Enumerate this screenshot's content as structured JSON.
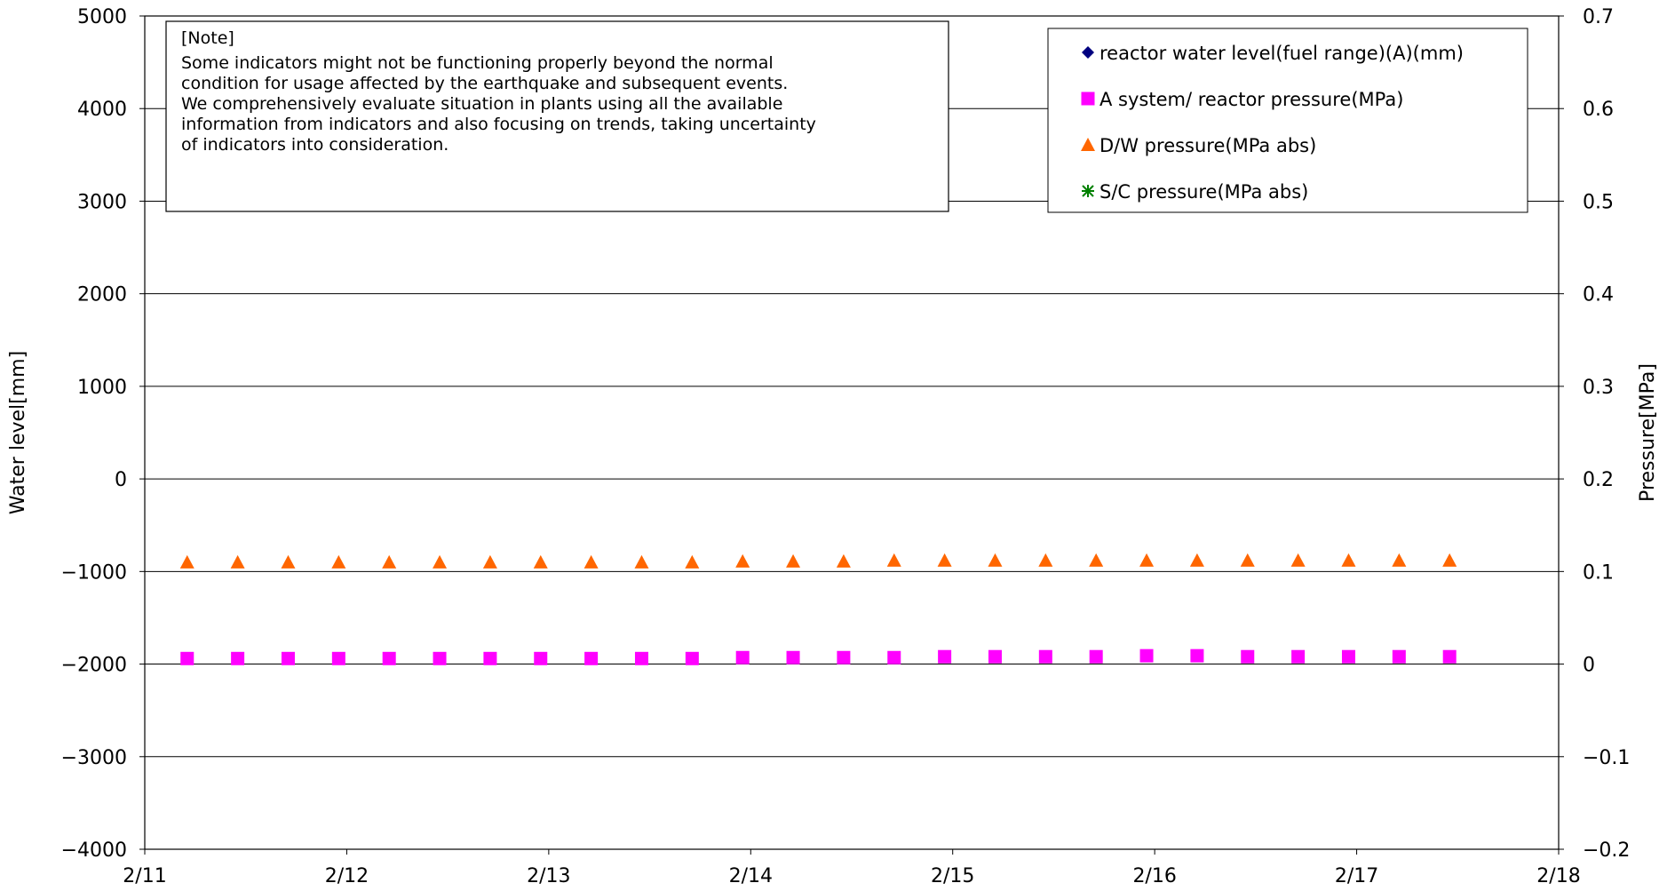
{
  "chart_data": {
    "type": "scatter",
    "title": "",
    "xlabel": "",
    "ylabel": "Water level[mm]",
    "y2label": "Pressure[MPa]",
    "x_ticks": [
      "2/11",
      "2/12",
      "2/13",
      "2/14",
      "2/15",
      "2/16",
      "2/17",
      "2/18"
    ],
    "xlim": [
      0,
      7
    ],
    "ylim": [
      -4000,
      5000
    ],
    "y_ticks": [
      "5000",
      "4000",
      "3000",
      "2000",
      "1000",
      "0",
      "−1000",
      "−2000",
      "−3000",
      "−4000"
    ],
    "y2lim": [
      -0.2,
      0.7
    ],
    "y2_ticks": [
      "0.7",
      "0.6",
      "0.5",
      "0.4",
      "0.3",
      "0.2",
      "0.1",
      "0",
      "−0.1",
      "−0.2"
    ],
    "grid": true,
    "legend_position": "top-right",
    "note": {
      "heading": "[Note]",
      "lines": [
        "Some indicators might not be functioning properly beyond the normal",
        "condition for usage affected by the earthquake and subsequent events.",
        "We comprehensively evaluate situation in plants using all the available",
        "information from indicators and also focusing on trends, taking uncertainty",
        "of indicators into consideration."
      ]
    },
    "series": [
      {
        "name": "reactor water level(fuel range)(A)(mm)",
        "axis": "left",
        "marker": "diamond",
        "color": "#000080",
        "x": [],
        "values": []
      },
      {
        "name": "A system/ reactor pressure(MPa)",
        "axis": "right",
        "marker": "square",
        "color": "#FF00FF",
        "x": [
          0.21,
          0.46,
          0.71,
          0.96,
          1.21,
          1.46,
          1.71,
          1.96,
          2.21,
          2.46,
          2.71,
          2.96,
          3.21,
          3.46,
          3.71,
          3.96,
          4.21,
          4.46,
          4.71,
          4.96,
          5.21,
          5.46,
          5.71,
          5.96,
          6.21,
          6.46
        ],
        "values": [
          0.006,
          0.006,
          0.006,
          0.006,
          0.006,
          0.006,
          0.006,
          0.006,
          0.006,
          0.006,
          0.006,
          0.007,
          0.007,
          0.007,
          0.007,
          0.008,
          0.008,
          0.008,
          0.008,
          0.009,
          0.009,
          0.008,
          0.008,
          0.008,
          0.008,
          0.008
        ]
      },
      {
        "name": "D/W pressure(MPa abs)",
        "axis": "right",
        "marker": "triangle",
        "color": "#FF6600",
        "x": [
          0.21,
          0.46,
          0.71,
          0.96,
          1.21,
          1.46,
          1.71,
          1.96,
          2.21,
          2.46,
          2.71,
          2.96,
          3.21,
          3.46,
          3.71,
          3.96,
          4.21,
          4.46,
          4.71,
          4.96,
          5.21,
          5.46,
          5.71,
          5.96,
          6.21,
          6.46
        ],
        "values": [
          0.11,
          0.11,
          0.11,
          0.11,
          0.11,
          0.11,
          0.11,
          0.11,
          0.11,
          0.11,
          0.11,
          0.111,
          0.111,
          0.111,
          0.112,
          0.112,
          0.112,
          0.112,
          0.112,
          0.112,
          0.112,
          0.112,
          0.112,
          0.112,
          0.112,
          0.112
        ]
      },
      {
        "name": "S/C pressure(MPa abs)",
        "axis": "right",
        "marker": "asterisk",
        "color": "#008000",
        "x": [],
        "values": []
      }
    ]
  }
}
